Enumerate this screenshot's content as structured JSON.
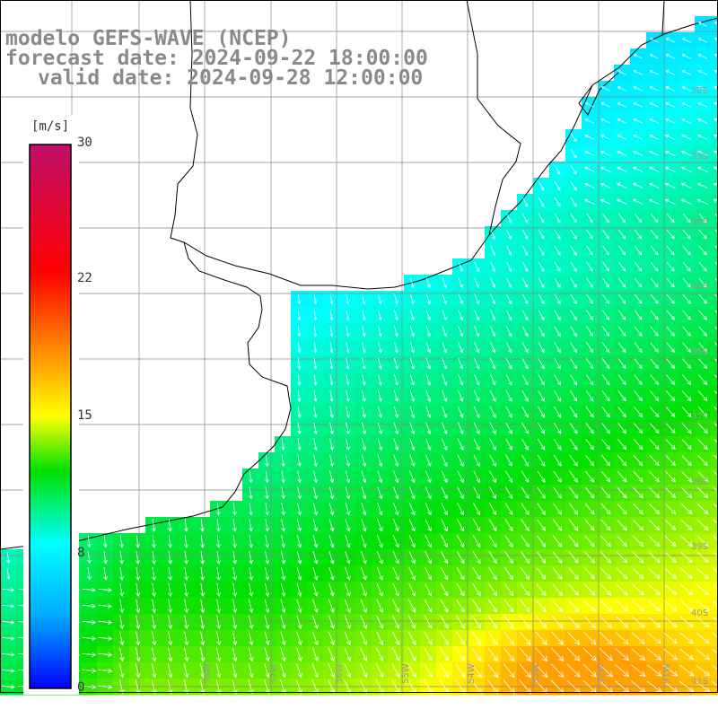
{
  "header": {
    "model": "modelo GEFS-WAVE (NCEP)",
    "forecast": "forecast date: 2024-09-22 18:00:00",
    "valid": "valid date: 2024-09-28 12:00:00"
  },
  "colorbar": {
    "unit": "[m/s]",
    "min": 0,
    "max": 30,
    "ticks": [
      "30",
      "22",
      "15",
      "8",
      "0"
    ],
    "tick_values": [
      30,
      22,
      15,
      8,
      0
    ],
    "colors": [
      "#0000ff",
      "#00aaff",
      "#00ffff",
      "#00e000",
      "#ffff00",
      "#ff8000",
      "#ff0000",
      "#c0106a"
    ],
    "color_stops": [
      0,
      4,
      8,
      12,
      15,
      19,
      23,
      30
    ]
  },
  "map": {
    "lat_labels": [
      "32S",
      "33S",
      "34S",
      "35S",
      "36S",
      "37S",
      "38S",
      "39S",
      "40S",
      "41S"
    ],
    "lon_labels": [
      "58W",
      "57W",
      "56W",
      "55W",
      "54W",
      "53W",
      "52W",
      "51W"
    ],
    "land_color": "#ffffff",
    "coast_color": "#000000",
    "grid_color": "#888888"
  }
}
